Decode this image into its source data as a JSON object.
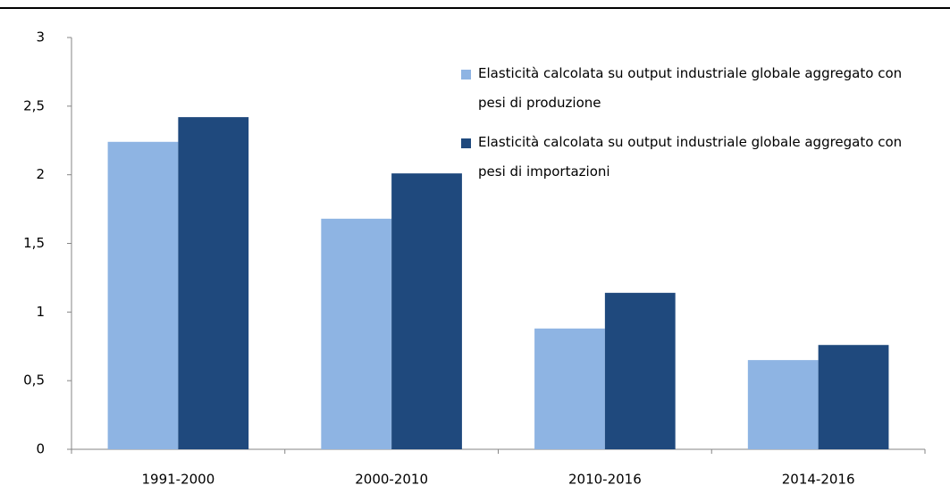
{
  "chart_data": {
    "type": "bar",
    "categories": [
      "1991-2000",
      "2000-2010",
      "2010-2016",
      "2014-2016"
    ],
    "series": [
      {
        "name": "Elasticità calcolata su output industriale globale aggregato con pesi di produzione",
        "color": "#8eb4e3",
        "values": [
          2.24,
          1.68,
          0.88,
          0.65
        ]
      },
      {
        "name": "Elasticità calcolata su output industriale globale aggregato con pesi di importazioni",
        "color": "#1f497d",
        "values": [
          2.42,
          2.01,
          1.14,
          0.76
        ]
      }
    ],
    "ylim": [
      0,
      3
    ],
    "yticks": [
      0,
      {
        "value": 0.5,
        "label": "0,5"
      },
      1,
      {
        "value": 1.5,
        "label": "1,5"
      },
      2,
      {
        "value": 2.5,
        "label": "2,5"
      },
      3
    ],
    "grid": false,
    "legend": "top-right"
  }
}
